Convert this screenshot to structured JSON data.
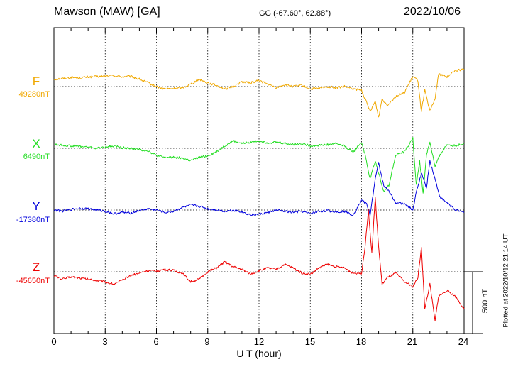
{
  "header": {
    "station": "Mawson (MAW)  [GA]",
    "coords": "GG (-67.60°,  62.88°)",
    "date": "2022/10/06"
  },
  "components": [
    {
      "label": "F",
      "baseline": "49280nT",
      "color": "#f0a800"
    },
    {
      "label": "X",
      "baseline": "6490nT",
      "color": "#22dd22"
    },
    {
      "label": "Y",
      "baseline": "-17380nT",
      "color": "#0000dd"
    },
    {
      "label": "Z",
      "baseline": "-45650nT",
      "color": "#ee0000"
    }
  ],
  "axis": {
    "xlabel": "U T (hour)",
    "xticks": [
      "0",
      "3",
      "6",
      "9",
      "12",
      "15",
      "18",
      "21",
      "24"
    ]
  },
  "scale_bar": "500 nT",
  "plotted_note": "Plotted at 2022/10/12 21:14 UT",
  "chart_data": {
    "type": "line",
    "xlabel": "U T (hour)",
    "xlim": [
      0,
      24
    ],
    "x_unit": "hour",
    "scale_bar_nT": 500,
    "series": [
      {
        "name": "F",
        "baseline_nT": 49280,
        "color": "#f0a800",
        "x": [
          0,
          0.5,
          1,
          1.5,
          2,
          2.5,
          3,
          3.5,
          4,
          4.5,
          5,
          5.5,
          6,
          6.5,
          7,
          7.5,
          8,
          8.5,
          9,
          9.5,
          10,
          10.5,
          11,
          11.5,
          12,
          12.5,
          13,
          13.5,
          14,
          14.5,
          15,
          15.5,
          16,
          16.5,
          17,
          17.5,
          18,
          18.5,
          18.8,
          19,
          19.2,
          19.5,
          20,
          20.5,
          21,
          21.3,
          21.5,
          21.7,
          22,
          22.3,
          22.5,
          23,
          23.5,
          24
        ],
        "y": [
          60,
          65,
          75,
          70,
          78,
          80,
          85,
          88,
          80,
          82,
          60,
          30,
          0,
          -20,
          -15,
          -10,
          20,
          60,
          30,
          10,
          -20,
          0,
          40,
          30,
          50,
          20,
          -10,
          15,
          0,
          10,
          -20,
          -15,
          0,
          -10,
          0,
          -20,
          -30,
          -200,
          -120,
          -250,
          -100,
          -150,
          -80,
          -50,
          80,
          50,
          -200,
          -30,
          -200,
          -100,
          100,
          80,
          130,
          140
        ]
      },
      {
        "name": "X",
        "baseline_nT": 6490,
        "color": "#22dd22",
        "x": [
          0,
          0.5,
          1,
          1.5,
          2,
          2.5,
          3,
          3.5,
          4,
          4.5,
          5,
          5.5,
          6,
          6.5,
          7,
          7.5,
          8,
          8.5,
          9,
          9.5,
          10,
          10.5,
          11,
          11.5,
          12,
          12.5,
          13,
          13.5,
          14,
          14.5,
          15,
          15.5,
          16,
          16.5,
          17,
          17.5,
          18,
          18.2,
          18.5,
          18.8,
          19,
          19.3,
          19.6,
          20,
          20.5,
          21,
          21.2,
          21.4,
          21.6,
          21.8,
          22,
          22.3,
          22.6,
          23,
          23.5,
          24
        ],
        "y": [
          30,
          25,
          20,
          15,
          10,
          0,
          10,
          20,
          5,
          0,
          -10,
          -20,
          -60,
          -75,
          -70,
          -80,
          -100,
          -75,
          -60,
          -30,
          20,
          60,
          40,
          50,
          60,
          45,
          50,
          40,
          30,
          40,
          20,
          25,
          30,
          40,
          20,
          -30,
          50,
          -50,
          -250,
          -100,
          -200,
          -350,
          -300,
          -50,
          -30,
          80,
          -300,
          -100,
          -370,
          -50,
          50,
          -150,
          -50,
          30,
          20,
          40
        ]
      },
      {
        "name": "Y",
        "baseline_nT": -17380,
        "color": "#0000dd",
        "x": [
          0,
          0.5,
          1,
          1.5,
          2,
          2.5,
          3,
          3.5,
          4,
          4.5,
          5,
          5.5,
          6,
          6.5,
          7,
          7.5,
          8,
          8.5,
          9,
          9.5,
          10,
          10.5,
          11,
          11.5,
          12,
          12.5,
          13,
          13.5,
          14,
          14.5,
          15,
          15.5,
          16,
          16.5,
          17,
          17.5,
          18,
          18.3,
          18.5,
          18.8,
          19,
          19.3,
          19.6,
          20,
          20.5,
          21,
          21.2,
          21.5,
          21.8,
          22,
          22.3,
          22.6,
          23,
          23.5,
          24
        ],
        "y": [
          0,
          -10,
          5,
          15,
          10,
          0,
          -10,
          -30,
          -20,
          -25,
          -5,
          10,
          0,
          -20,
          -10,
          20,
          40,
          30,
          10,
          0,
          -10,
          0,
          -15,
          -40,
          -35,
          -20,
          0,
          -10,
          -20,
          -10,
          -30,
          -10,
          -5,
          -15,
          -10,
          -40,
          80,
          50,
          -40,
          250,
          380,
          200,
          150,
          60,
          50,
          0,
          140,
          300,
          180,
          400,
          250,
          100,
          60,
          0,
          -20
        ]
      },
      {
        "name": "Z",
        "baseline_nT": -45650,
        "color": "#ee0000",
        "x": [
          0,
          0.5,
          1,
          1.5,
          2,
          2.5,
          3,
          3.5,
          4,
          4.5,
          5,
          5.5,
          6,
          6.5,
          7,
          7.5,
          8,
          8.5,
          9,
          9.5,
          10,
          10.5,
          11,
          11.5,
          12,
          12.5,
          13,
          13.5,
          14,
          14.5,
          15,
          15.5,
          16,
          16.5,
          17,
          17.5,
          18,
          18.2,
          18.4,
          18.6,
          18.8,
          19,
          19.2,
          19.5,
          20,
          20.5,
          21,
          21.3,
          21.5,
          21.7,
          22,
          22.3,
          22.5,
          23,
          23.5,
          24
        ],
        "y": [
          -30,
          -60,
          -40,
          -50,
          -60,
          -70,
          -80,
          -100,
          -70,
          -30,
          -10,
          10,
          5,
          20,
          10,
          -10,
          -80,
          -60,
          0,
          30,
          80,
          40,
          20,
          -20,
          10,
          30,
          20,
          60,
          30,
          -10,
          -20,
          30,
          60,
          40,
          30,
          -10,
          -10,
          200,
          500,
          150,
          600,
          200,
          -100,
          -50,
          -10,
          -80,
          -120,
          -50,
          200,
          -300,
          -100,
          -400,
          -200,
          -150,
          -200,
          -300
        ]
      }
    ]
  }
}
